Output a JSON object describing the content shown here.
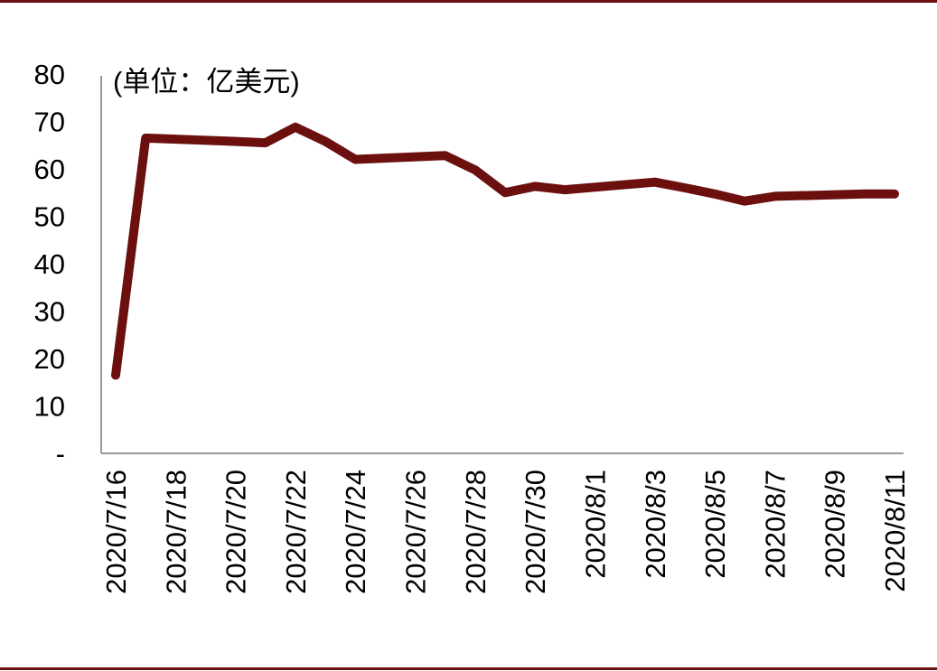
{
  "colors": {
    "line": "#6b0f0f",
    "rule": "#6b0f0f",
    "axis": "#999999"
  },
  "chart_data": {
    "type": "line",
    "unit_label": "(单位：亿美元)",
    "x_tick_labels": [
      "2020/7/16",
      "2020/7/18",
      "2020/7/20",
      "2020/7/22",
      "2020/7/24",
      "2020/7/26",
      "2020/7/28",
      "2020/7/30",
      "2020/8/1",
      "2020/8/3",
      "2020/8/5",
      "2020/8/7",
      "2020/8/9",
      "2020/8/11"
    ],
    "y_tick_labels": [
      "-",
      "10",
      "20",
      "30",
      "40",
      "50",
      "60",
      "70",
      "80"
    ],
    "ylim": [
      0,
      80
    ],
    "xlim": [
      "2020/7/16",
      "2020/8/11"
    ],
    "grid": false,
    "series": [
      {
        "x": [
          "2020/7/16",
          "2020/7/17",
          "2020/7/20",
          "2020/7/21",
          "2020/7/22",
          "2020/7/23",
          "2020/7/24",
          "2020/7/27",
          "2020/7/28",
          "2020/7/29",
          "2020/7/30",
          "2020/7/31",
          "2020/8/3",
          "2020/8/4",
          "2020/8/5",
          "2020/8/6",
          "2020/8/7",
          "2020/8/10",
          "2020/8/11"
        ],
        "values": [
          16.5,
          66.5,
          65.8,
          65.5,
          68.8,
          65.8,
          62.0,
          62.8,
          59.8,
          55.0,
          56.3,
          55.6,
          57.2,
          56.0,
          54.7,
          53.2,
          54.2,
          54.7,
          54.7
        ]
      }
    ]
  }
}
